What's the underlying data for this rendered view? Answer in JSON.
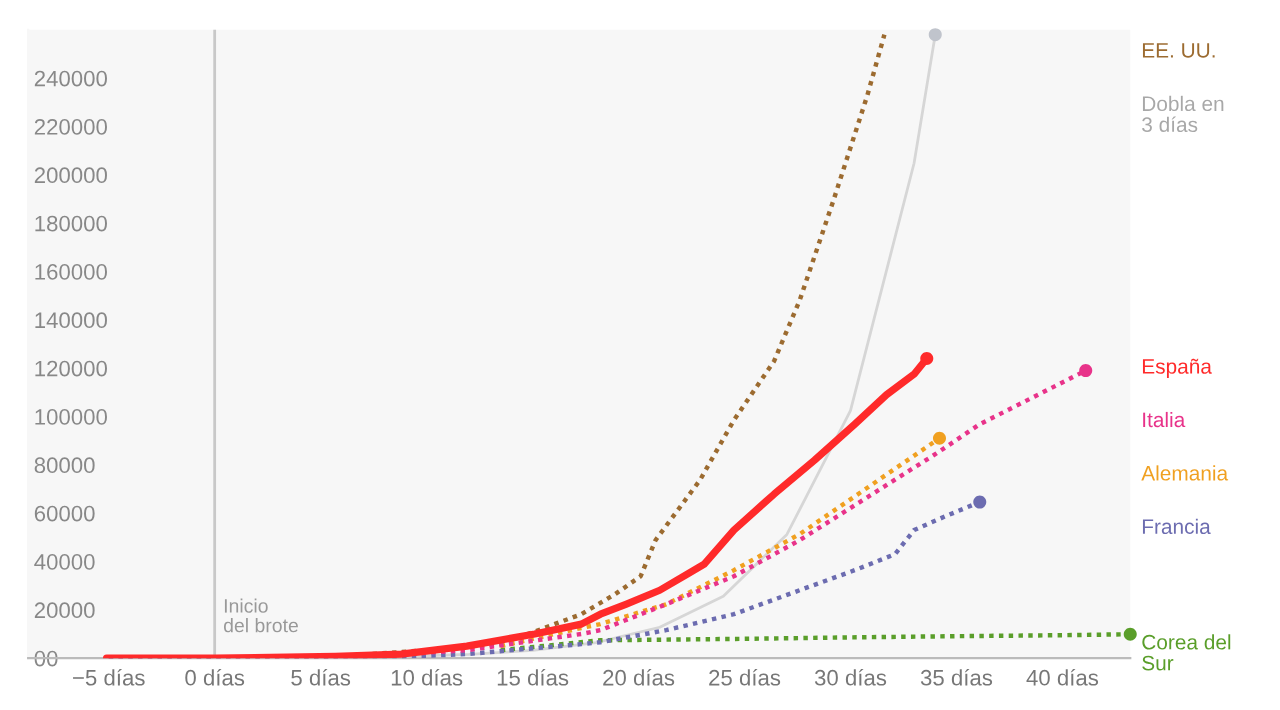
{
  "chart_data": {
    "type": "line",
    "xlim": [
      -8.8,
      43.2
    ],
    "ylim": [
      0,
      260000
    ],
    "xticks": [
      {
        "value": -5,
        "label": "−5 días"
      },
      {
        "value": 0,
        "label": "0 días"
      },
      {
        "value": 5,
        "label": "5 días"
      },
      {
        "value": 10,
        "label": "10 días"
      },
      {
        "value": 15,
        "label": "15 días"
      },
      {
        "value": 20,
        "label": "20 días"
      },
      {
        "value": 25,
        "label": "25 días"
      },
      {
        "value": 30,
        "label": "30 días"
      },
      {
        "value": 35,
        "label": "35 días"
      },
      {
        "value": 40,
        "label": "40 días"
      }
    ],
    "yticks": [
      {
        "value": 0,
        "label": "00"
      },
      20000,
      40000,
      60000,
      80000,
      100000,
      120000,
      140000,
      160000,
      180000,
      200000,
      220000,
      240000
    ],
    "grid": false,
    "legend": "right",
    "ref_lines": [
      {
        "axis": "x",
        "value": 0,
        "label": "Inicio\ndel brote",
        "color": "#c8c8c8"
      }
    ],
    "series": [
      {
        "name": "EE. UU.",
        "color": "#9c6b30",
        "line_style": "dotted",
        "x": [
          -5,
          0,
          5,
          8.8,
          13.5,
          17.3,
          18.9,
          20.1,
          20.8,
          22.9,
          24.5,
          26.4,
          27.6,
          29.2,
          30.8,
          31.6
        ],
        "values": [
          0,
          0,
          400,
          2500,
          5800,
          18200,
          26500,
          33900,
          48800,
          73700,
          98500,
          123000,
          148000,
          189500,
          233000,
          258000
        ]
      },
      {
        "name": "Dobla en\n3 días",
        "color": "#d6d6d6",
        "line_style": "solid",
        "x": [
          0,
          3,
          6,
          9,
          12,
          15,
          18,
          21,
          24,
          27,
          30,
          33,
          34
        ],
        "values": [
          100,
          200,
          400,
          800,
          1600,
          3200,
          6400,
          12800,
          25600,
          51200,
          102400,
          204800,
          258000
        ]
      },
      {
        "name": "Corea del\nSur",
        "color": "#5a9e2a",
        "line_style": "dotted",
        "x": [
          13.5,
          18.2,
          25,
          30,
          35,
          40,
          43.2
        ],
        "values": [
          3300,
          7400,
          8000,
          8600,
          9100,
          9500,
          9900
        ]
      },
      {
        "name": "Francia",
        "color": "#6c6cb0",
        "line_style": "dotted",
        "x": [
          -5,
          0,
          7.2,
          11.9,
          17.3,
          18.2,
          21.3,
          24.5,
          27.6,
          30.2,
          32.1,
          33.0,
          34.5,
          36.1
        ],
        "values": [
          0,
          0,
          0,
          1700,
          5800,
          6600,
          11600,
          18200,
          28100,
          36400,
          43000,
          53000,
          58800,
          64600
        ]
      },
      {
        "name": "Alemania",
        "color": "#f0a020",
        "line_style": "dotted",
        "x": [
          13.5,
          17.3,
          18.2,
          21.3,
          24.5,
          27.6,
          34.2
        ],
        "values": [
          5000,
          12500,
          14100,
          22300,
          36400,
          51300,
          91000
        ]
      },
      {
        "name": "Italia",
        "color": "#e8338a",
        "line_style": "dotted",
        "x": [
          -5,
          0,
          7.2,
          11.9,
          17.3,
          18.2,
          21.3,
          24.5,
          27.6,
          34.0,
          36.1,
          41.1
        ],
        "values": [
          0,
          0,
          800,
          3300,
          10000,
          11600,
          22300,
          33900,
          48800,
          84400,
          96800,
          119000
        ]
      },
      {
        "name": "España",
        "color": "#ff2a2a",
        "line_style": "solid",
        "x": [
          -5.1,
          0,
          5.7,
          8.8,
          11.9,
          15.1,
          17.3,
          18.2,
          19.4,
          21.0,
          22.3,
          23.1,
          24.5,
          26.4,
          28.3,
          30.2,
          31.7,
          33.0,
          33.6
        ],
        "values": [
          0,
          0,
          800,
          1700,
          5000,
          10000,
          14100,
          18200,
          22300,
          28100,
          34800,
          38900,
          53000,
          67900,
          81900,
          96800,
          109000,
          117500,
          124000
        ]
      },
      {
        "type": "scatter",
        "marker": "circle",
        "colors": [
          "#c0c4cc",
          "#5a9e2a",
          "#6c6cb0",
          "#f0a020",
          "#e8338a",
          "#ff2a2a"
        ],
        "x": [
          34,
          43.2,
          36.1,
          34.2,
          41.1,
          33.6
        ],
        "values": [
          258000,
          9900,
          64600,
          91000,
          119000,
          124000
        ]
      }
    ]
  }
}
